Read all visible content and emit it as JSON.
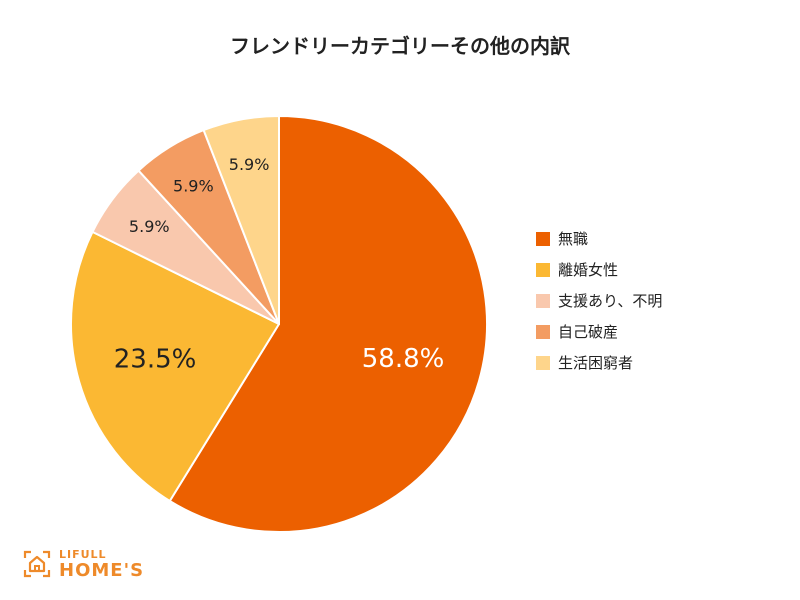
{
  "chart_data": {
    "type": "pie",
    "title": "フレンドリーカテゴリーその他の内訳",
    "categories": [
      "無職",
      "離婚女性",
      "支援あり、不明",
      "自己破産",
      "生活困窮者"
    ],
    "values": [
      58.8,
      23.5,
      5.9,
      5.9,
      5.9
    ],
    "data_labels": [
      "58.8%",
      "23.5%",
      "5.9%",
      "5.9%",
      "5.9%"
    ],
    "colors": [
      "#ec6000",
      "#fbb833",
      "#f9c8ad",
      "#f39c62",
      "#fed58b"
    ],
    "label_colors": [
      "#ffffff",
      "#222222",
      "#222222",
      "#222222",
      "#222222"
    ],
    "start_angle_deg": 0,
    "direction": "clockwise",
    "legend_position": "right"
  },
  "logo": {
    "line1": "LIFULL",
    "line2": "HOME'S",
    "color": "#ee8a2a"
  }
}
